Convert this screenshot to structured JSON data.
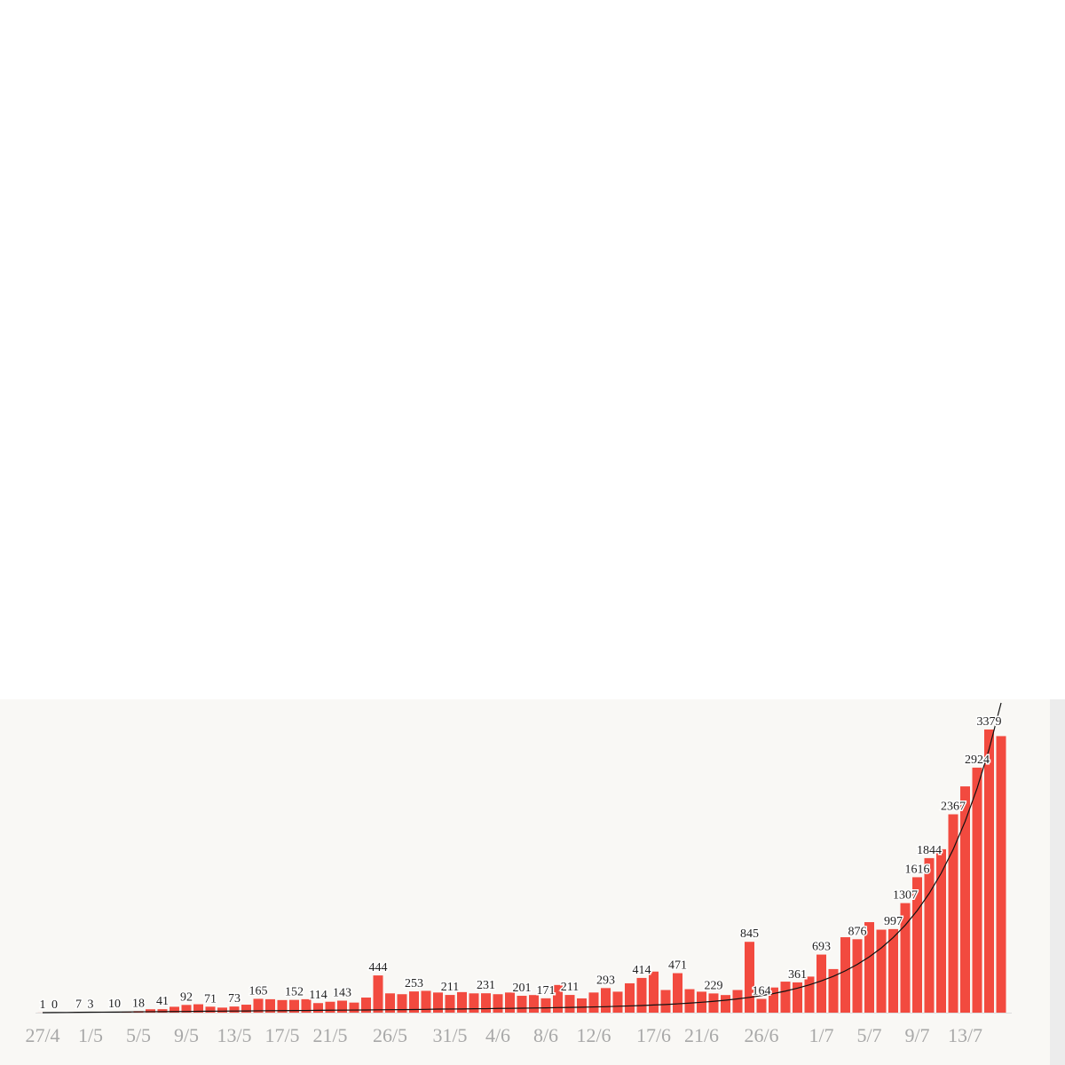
{
  "chart_data": {
    "type": "bar",
    "categories": [
      "27/4",
      null,
      null,
      null,
      "1/5",
      null,
      null,
      null,
      "5/5",
      null,
      null,
      null,
      "9/5",
      null,
      null,
      null,
      "13/5",
      null,
      null,
      null,
      "17/5",
      null,
      null,
      null,
      "21/5",
      null,
      null,
      null,
      null,
      "26/5",
      null,
      null,
      null,
      null,
      "31/5",
      null,
      null,
      null,
      "4/6",
      null,
      null,
      null,
      "8/6",
      null,
      null,
      null,
      "12/6",
      null,
      null,
      null,
      null,
      "17/6",
      null,
      null,
      null,
      "21/6",
      null,
      null,
      null,
      null,
      "26/6",
      null,
      null,
      null,
      null,
      "1/7",
      null,
      null,
      null,
      "5/7",
      null,
      null,
      null,
      "9/7",
      null,
      null,
      null,
      "13/7",
      null,
      null,
      null
    ],
    "values": [
      1,
      0,
      2,
      7,
      3,
      5,
      10,
      8,
      18,
      40,
      41,
      70,
      92,
      100,
      71,
      60,
      73,
      95,
      165,
      160,
      150,
      152,
      160,
      114,
      130,
      143,
      120,
      180,
      444,
      230,
      220,
      253,
      260,
      240,
      211,
      245,
      230,
      231,
      220,
      240,
      201,
      210,
      171,
      330,
      211,
      170,
      240,
      293,
      250,
      350,
      414,
      490,
      270,
      471,
      280,
      250,
      229,
      210,
      270,
      845,
      164,
      300,
      370,
      361,
      430,
      693,
      520,
      900,
      876,
      1080,
      990,
      997,
      1307,
      1616,
      1844,
      1950,
      2367,
      2700,
      2924,
      3379,
      3300
    ],
    "value_labels": [
      "1",
      "0",
      null,
      "7",
      "3",
      null,
      "10",
      null,
      "18",
      null,
      "41",
      null,
      "92",
      null,
      "71",
      null,
      "73",
      null,
      "165",
      null,
      null,
      "152",
      null,
      "114",
      null,
      "143",
      null,
      null,
      "444",
      null,
      null,
      "253",
      null,
      null,
      "211",
      null,
      null,
      "231",
      null,
      null,
      "201",
      null,
      "171",
      null,
      "211",
      null,
      null,
      "293",
      null,
      null,
      "414",
      null,
      null,
      "471",
      null,
      null,
      "229",
      null,
      null,
      "845",
      "164",
      null,
      null,
      "361",
      null,
      "693",
      null,
      null,
      "876",
      null,
      null,
      "997",
      "1307",
      "1616",
      "1844",
      null,
      "2367",
      null,
      "2924",
      "3379",
      null
    ],
    "color": "#f24a3f",
    "trend": {
      "color": "#111111",
      "values": [
        0,
        1,
        2,
        4,
        5,
        6,
        7,
        8,
        10,
        11,
        12,
        13,
        14,
        16,
        17,
        18,
        19,
        20,
        22,
        23,
        24,
        25,
        26,
        28,
        29,
        30,
        31,
        32,
        34,
        35,
        36,
        37,
        39,
        42,
        43,
        44,
        46,
        47,
        50,
        51,
        53,
        55,
        57,
        60,
        62,
        65,
        68,
        71,
        76,
        80,
        85,
        91,
        97,
        105,
        114,
        124,
        135,
        148,
        164,
        182,
        203,
        228,
        257,
        292,
        332,
        379,
        434,
        499,
        576,
        666,
        772,
        897,
        1044,
        1218,
        1423,
        1664,
        1948,
        2283,
        2679,
        3146,
        3696
      ]
    },
    "ylim": [
      0,
      12000
    ]
  }
}
